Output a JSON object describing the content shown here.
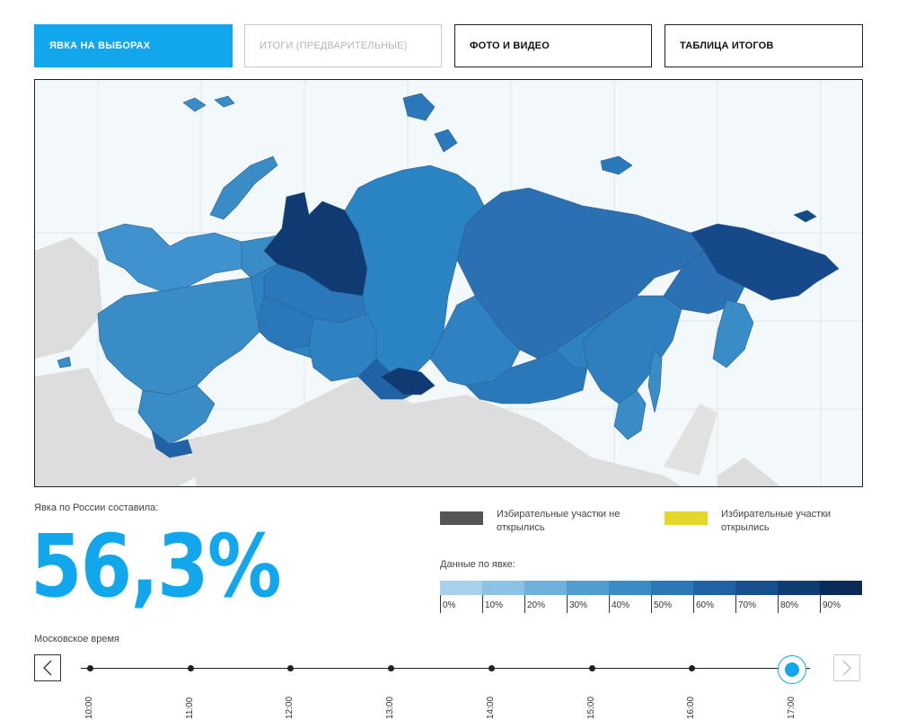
{
  "tabs": [
    {
      "label": "ЯВКА НА ВЫБОРАХ",
      "state": "active"
    },
    {
      "label": "ИТОГИ (ПРЕДВАРИТЕЛЬНЫЕ)",
      "state": "disabled"
    },
    {
      "label": "ФОТО И ВИДЕО",
      "state": "normal"
    },
    {
      "label": "ТАБЛИЦА ИТОГОВ",
      "state": "normal"
    }
  ],
  "turnout": {
    "label": "Явка по России составила:",
    "value": "56,3%"
  },
  "status_legend": {
    "closed_label": "Избирательные участки не открылись",
    "closed_color": "#555555",
    "open_label": "Избирательные участки открылись",
    "open_color": "#e4d62c"
  },
  "scale": {
    "title": "Данные по явке:",
    "ticks": [
      "0%",
      "10%",
      "20%",
      "30%",
      "40%",
      "50%",
      "60%",
      "70%",
      "80%",
      "90%"
    ],
    "colors": [
      "#a7d0ea",
      "#8cc2e4",
      "#6fb1dc",
      "#4f9dd1",
      "#3a8cc6",
      "#2a78b9",
      "#1f63a6",
      "#17508f",
      "#103c74",
      "#0a2a59"
    ]
  },
  "timeline": {
    "label": "Московское время",
    "times": [
      "10:00",
      "11:00",
      "12:00",
      "13:00",
      "14:00",
      "15:00",
      "16:00",
      "17:00"
    ],
    "current": "17:00"
  },
  "map": {
    "background_color": "#f3f8fb",
    "neighbor_color": "#dddddd",
    "icons": [
      "chevron-left-icon",
      "chevron-right-icon"
    ]
  }
}
